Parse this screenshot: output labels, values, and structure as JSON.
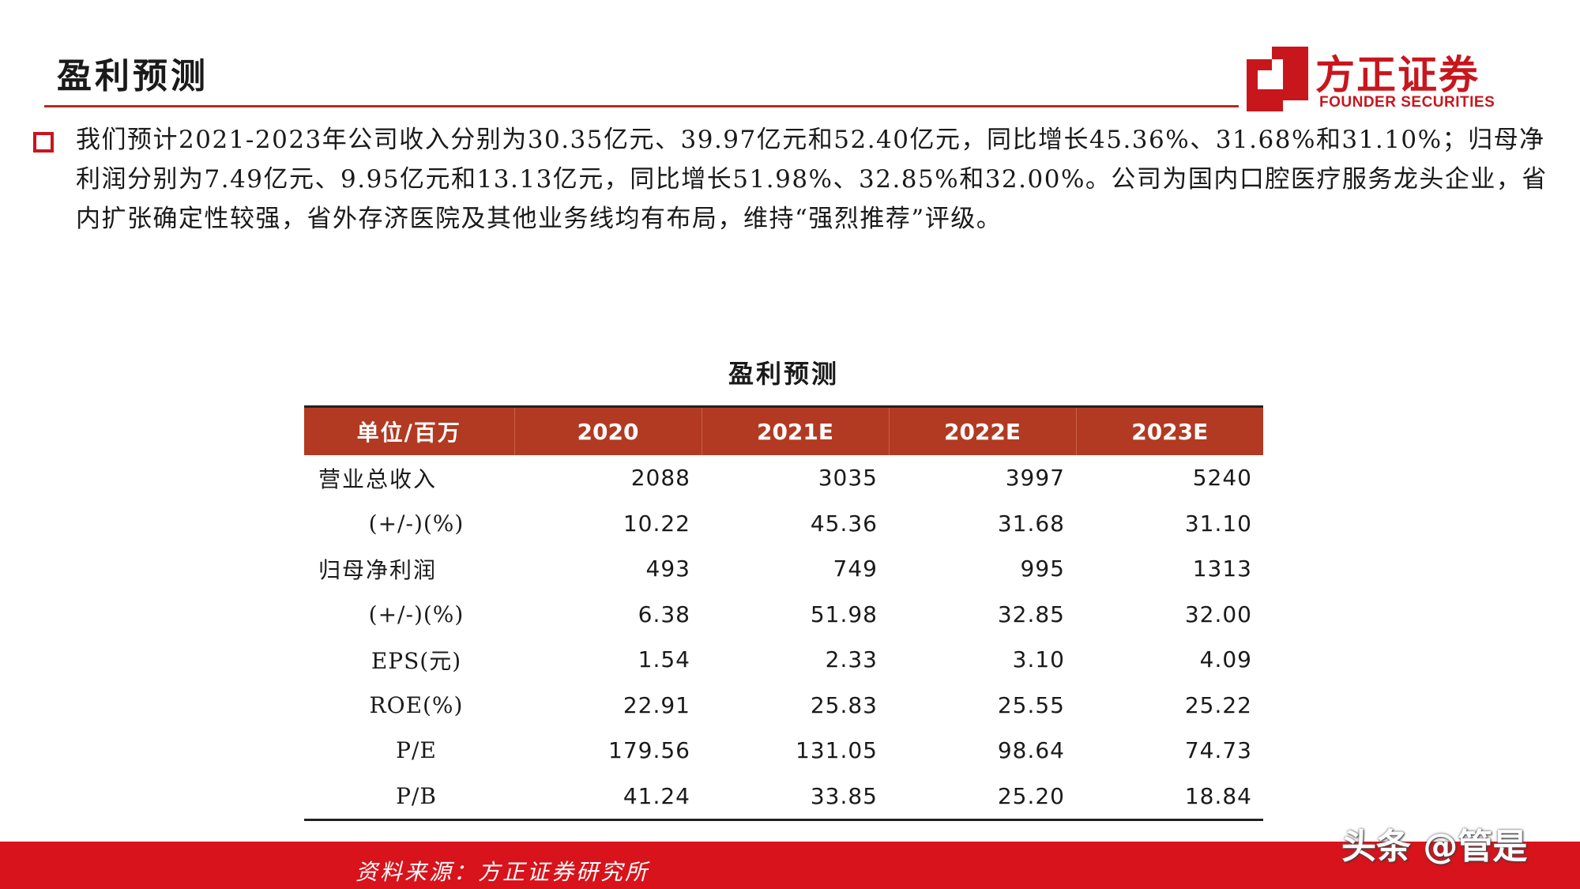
{
  "header": {
    "title": "盈利预测",
    "logo_cn": "方正证券",
    "logo_en": "FOUNDER SECURITIES",
    "accent_color": "#c8161d"
  },
  "summary": {
    "text": "我们预计2021-2023年公司收入分别为30.35亿元、39.97亿元和52.40亿元，同比增长45.36%、31.68%和31.10%；归母净利润分别为7.49亿元、9.95亿元和13.13亿元，同比增长51.98%、32.85%和32.00%。公司为国内口腔医疗服务龙头企业，省内扩张确定性较强，省外存济医院及其他业务线均有布局，维持“强烈推荐”评级。"
  },
  "table": {
    "title": "盈利预测",
    "header_color": "#b23a22",
    "headers": [
      "单位/百万",
      "2020",
      "2021E",
      "2022E",
      "2023E"
    ],
    "rows": [
      {
        "label": "营业总收入",
        "values": [
          "2088",
          "3035",
          "3997",
          "5240"
        ]
      },
      {
        "label": "(+/-)(%)",
        "values": [
          "10.22",
          "45.36",
          "31.68",
          "31.10"
        ]
      },
      {
        "label": "归母净利润",
        "values": [
          "493",
          "749",
          "995",
          "1313"
        ]
      },
      {
        "label": "(+/-)(%)",
        "values": [
          "6.38",
          "51.98",
          "32.85",
          "32.00"
        ]
      },
      {
        "label": "EPS(元)",
        "values": [
          "1.54",
          "2.33",
          "3.10",
          "4.09"
        ]
      },
      {
        "label": "ROE(%)",
        "values": [
          "22.91",
          "25.83",
          "25.55",
          "25.22"
        ]
      },
      {
        "label": "P/E",
        "values": [
          "179.56",
          "131.05",
          "98.64",
          "74.73"
        ]
      },
      {
        "label": "P/B",
        "values": [
          "41.24",
          "33.85",
          "25.20",
          "18.84"
        ]
      }
    ]
  },
  "footer": {
    "source": "资料来源：方正证券研究所",
    "watermark": "头条 @管是",
    "bar_color": "#d8131b"
  }
}
